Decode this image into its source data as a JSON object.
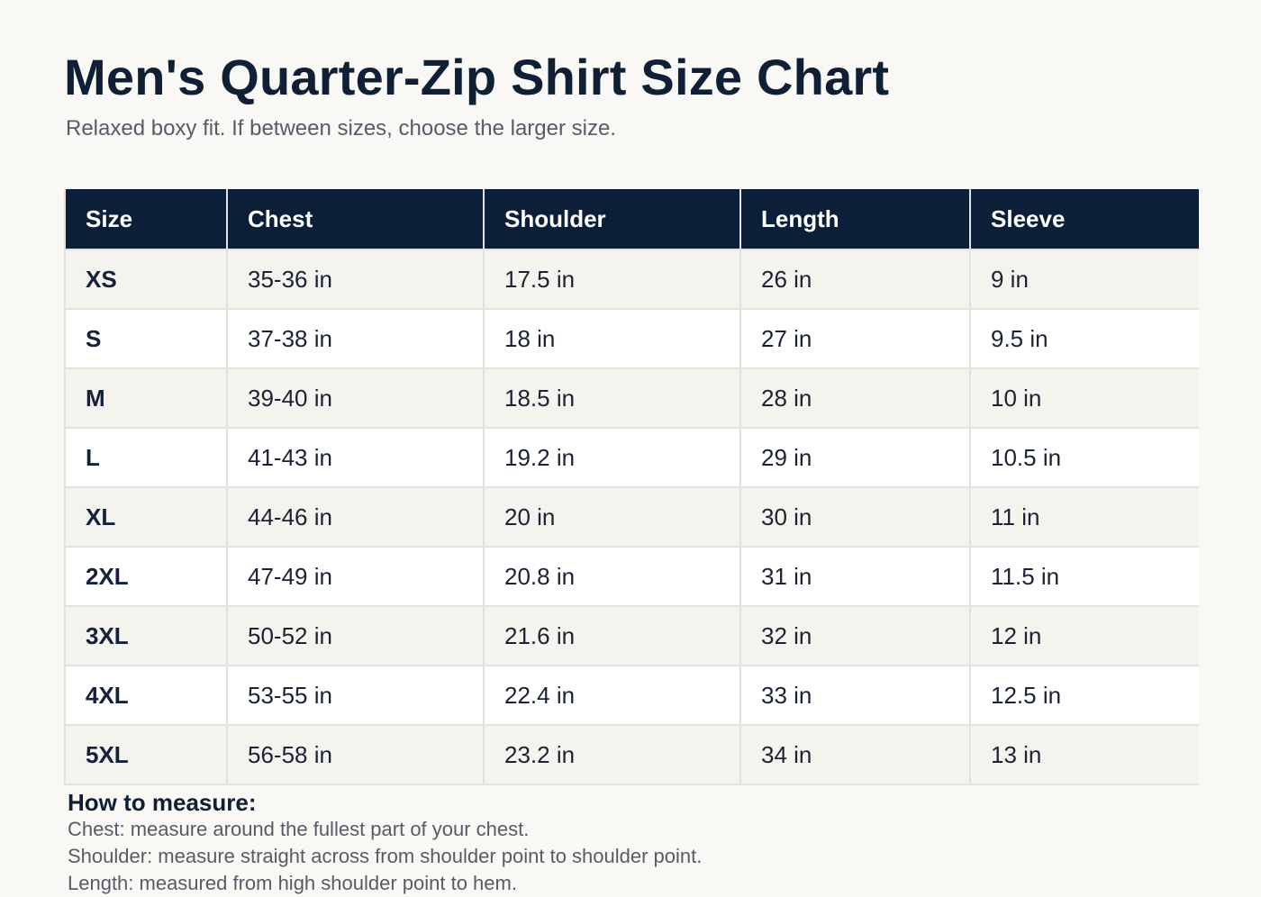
{
  "title": "Men's Quarter-Zip Shirt Size Chart",
  "subtitle": "Relaxed boxy fit. If between sizes, choose the larger size.",
  "table": {
    "headers": [
      "Size",
      "Chest",
      "Shoulder",
      "Length",
      "Sleeve"
    ],
    "rows": [
      [
        "XS",
        "35-36 in",
        "17.5 in",
        "26 in",
        "9 in"
      ],
      [
        "S",
        "37-38 in",
        "18 in",
        "27 in",
        "9.5 in"
      ],
      [
        "M",
        "39-40 in",
        "18.5 in",
        "28 in",
        "10 in"
      ],
      [
        "L",
        "41-43 in",
        "19.2 in",
        "29 in",
        "10.5 in"
      ],
      [
        "XL",
        "44-46 in",
        "20 in",
        "30 in",
        "11 in"
      ],
      [
        "2XL",
        "47-49 in",
        "20.8 in",
        "31 in",
        "11.5 in"
      ],
      [
        "3XL",
        "50-52 in",
        "21.6 in",
        "32 in",
        "12 in"
      ],
      [
        "4XL",
        "53-55 in",
        "22.4 in",
        "33 in",
        "12.5 in"
      ],
      [
        "5XL",
        "56-58 in",
        "23.2 in",
        "34 in",
        "13 in"
      ]
    ]
  },
  "how_to_measure": {
    "title": "How to measure:",
    "lines": [
      "Chest: measure around the fullest part of your chest.",
      "Shoulder: measure straight across from shoulder point to shoulder point.",
      "Length: measured from high shoulder point to hem."
    ]
  },
  "colors": {
    "background": "#faf8f4",
    "header_bg": "#0b1f38",
    "title_text": "#0e1f36",
    "muted_text": "#565c67",
    "row_alt": "#f5f3ee",
    "border": "#e2e1dd"
  }
}
